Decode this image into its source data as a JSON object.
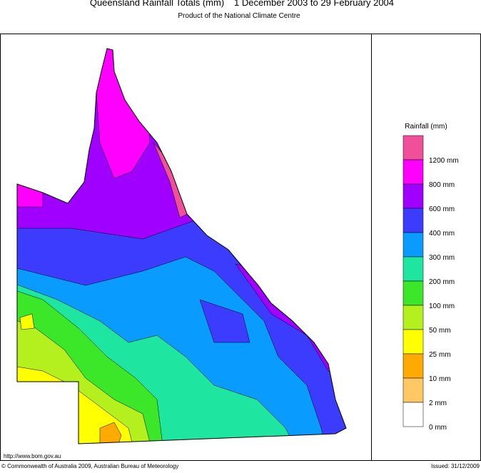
{
  "title": "Queensland Rainfall Totals (mm)",
  "period": "1 December 2003 to 29 February 2004",
  "subtitle": "Product of the National Climate Centre",
  "legend": {
    "title": "Rainfall (mm)",
    "items": [
      {
        "label": "1200 mm",
        "color": "#f0509a"
      },
      {
        "label": "800 mm",
        "color": "#ff00ff"
      },
      {
        "label": "600 mm",
        "color": "#a000ff"
      },
      {
        "label": "400 mm",
        "color": "#3c3cff"
      },
      {
        "label": "300 mm",
        "color": "#0a9bff"
      },
      {
        "label": "200 mm",
        "color": "#1ee6a0"
      },
      {
        "label": "100 mm",
        "color": "#3ce628"
      },
      {
        "label": "50 mm",
        "color": "#b4f01e"
      },
      {
        "label": "25 mm",
        "color": "#ffff00"
      },
      {
        "label": "10 mm",
        "color": "#ffaa00"
      },
      {
        "label": "2 mm",
        "color": "#ffc864"
      },
      {
        "label": "0 mm",
        "color": "#ffffff"
      }
    ]
  },
  "footer": {
    "url": "http://www.bom.gov.au",
    "copyright": "© Commonwealth of Australia 2009, Australian Bureau of Meteorology",
    "issued": "Issued: 31/12/2009"
  }
}
